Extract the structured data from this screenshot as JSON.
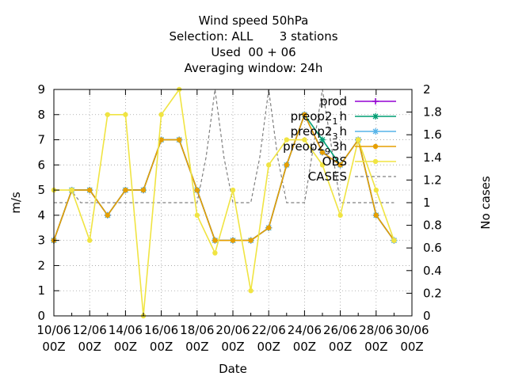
{
  "title_lines": [
    "Wind speed 50hPa",
    "Selection: ALL       3 stations",
    "Used  00 + 06",
    "Averaging window: 24h"
  ],
  "chart_data": {
    "type": "line",
    "xlabel": "Date",
    "ylabel": "m/s",
    "y2label": "No cases",
    "ylim": [
      0,
      9
    ],
    "y2lim": [
      0,
      2
    ],
    "grid": true,
    "legend_position": "top-right",
    "x_range": [
      "2022-06-10 00Z",
      "2022-06-30 00Z"
    ],
    "x_ticks": [
      {
        "day": 10,
        "line1": "10/06",
        "line2": "00Z"
      },
      {
        "day": 12,
        "line1": "12/06",
        "line2": "00Z"
      },
      {
        "day": 14,
        "line1": "14/06",
        "line2": "00Z"
      },
      {
        "day": 16,
        "line1": "16/06",
        "line2": "00Z"
      },
      {
        "day": 18,
        "line1": "18/06",
        "line2": "00Z"
      },
      {
        "day": 20,
        "line1": "20/06",
        "line2": "00Z"
      },
      {
        "day": 22,
        "line1": "22/06",
        "line2": "00Z"
      },
      {
        "day": 24,
        "line1": "24/06",
        "line2": "00Z"
      },
      {
        "day": 26,
        "line1": "26/06",
        "line2": "00Z"
      },
      {
        "day": 28,
        "line1": "28/06",
        "line2": "00Z"
      },
      {
        "day": 30,
        "line1": "30/06",
        "line2": "00Z"
      }
    ],
    "y_ticks": [
      "0",
      "1",
      "2",
      "3",
      "4",
      "5",
      "6",
      "7",
      "8",
      "9"
    ],
    "y2_ticks": [
      "0",
      "0.2",
      "0.4",
      "0.6",
      "0.8",
      "1",
      "1.2",
      "1.4",
      "1.6",
      "1.8",
      "2"
    ],
    "x_days": [
      10,
      11,
      12,
      13,
      14,
      15,
      16,
      17,
      18,
      19,
      20,
      21,
      22,
      23,
      24,
      25,
      26,
      27,
      28,
      29
    ],
    "series": [
      {
        "name": "prod",
        "axis": "y",
        "color": "#9400d3",
        "marker": "plus",
        "dashed": false,
        "values": [
          3,
          5,
          5,
          4,
          5,
          5,
          7,
          7,
          5,
          3,
          3,
          3,
          3.5,
          6,
          8,
          6.5,
          6,
          7,
          4,
          3
        ]
      },
      {
        "name": "preop2_1h",
        "label_main": "preop2",
        "label_sub": "1",
        "label_tail": "h",
        "axis": "y",
        "color": "#009e73",
        "marker": "star",
        "dashed": false,
        "values": [
          3,
          5,
          5,
          4,
          5,
          5,
          7,
          7,
          5,
          3,
          3,
          3,
          3.5,
          6,
          8,
          7,
          6,
          7,
          4,
          3
        ]
      },
      {
        "name": "preop2_3h",
        "label_main": "preop2",
        "label_sub": "3",
        "label_tail": "h",
        "axis": "y",
        "color": "#56b4e9",
        "marker": "star",
        "dashed": false,
        "values": [
          3,
          5,
          5,
          4,
          5,
          5,
          7,
          7,
          5,
          3,
          3,
          3,
          3.5,
          6,
          8,
          6.5,
          6,
          7,
          4,
          3
        ]
      },
      {
        "name": "preop2_9_3h",
        "label_main": "preop2",
        "label_sub": "9",
        "label_tail": "3h",
        "axis": "y",
        "color": "#e69f00",
        "marker": "dot",
        "dashed": false,
        "values": [
          3,
          5,
          5,
          4,
          5,
          5,
          7,
          7,
          5,
          3,
          3,
          3,
          3.5,
          6,
          8,
          6.5,
          6,
          7,
          4,
          3
        ]
      },
      {
        "name": "OBS",
        "axis": "y",
        "color": "#f0e442",
        "marker": "dot",
        "dashed": false,
        "values": [
          5,
          5,
          3,
          8,
          8,
          0,
          8,
          9,
          4,
          2.5,
          5,
          1,
          6,
          7,
          7,
          6,
          4,
          7,
          5,
          3
        ]
      },
      {
        "name": "CASES",
        "axis": "y2",
        "color": "#808080",
        "marker": "none",
        "dashed": true,
        "x": [
          10,
          10.5,
          10.75,
          11,
          11.5,
          12,
          12.5,
          13,
          14,
          15,
          16,
          17,
          18,
          18.5,
          19,
          19.5,
          20,
          20.5,
          21,
          21.5,
          22,
          22.5,
          23,
          23.5,
          24,
          24.5,
          25,
          25.5,
          26,
          27,
          28,
          29
        ],
        "values": [
          1,
          1,
          1,
          1.1,
          1,
          1,
          1,
          1,
          1,
          1,
          1,
          1,
          1,
          1.4,
          2,
          1.4,
          1,
          1,
          1,
          1.4,
          2,
          1.4,
          1,
          1,
          1,
          1.5,
          2,
          1.5,
          1,
          1,
          1,
          1
        ]
      }
    ]
  }
}
